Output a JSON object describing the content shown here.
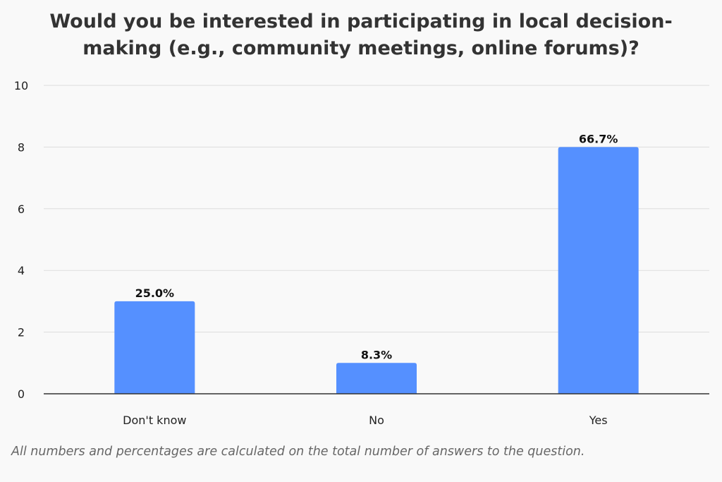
{
  "chart_data": {
    "type": "bar",
    "title": "Would you be interested in participating in local decision-making (e.g., community meetings, online forums)?",
    "categories": [
      "Don't know",
      "No",
      "Yes"
    ],
    "values": [
      3,
      1,
      8
    ],
    "data_labels": [
      "25.0%",
      "8.3%",
      "66.7%"
    ],
    "ylim": [
      0,
      10
    ],
    "yticks": [
      "0",
      "2",
      "4",
      "6",
      "8",
      "10"
    ],
    "xlabel": "",
    "ylabel": "",
    "grid": true,
    "legend": "none",
    "bar_color": "#5590ff",
    "footnote": "All numbers and percentages are calculated on the total number of answers to the question."
  }
}
